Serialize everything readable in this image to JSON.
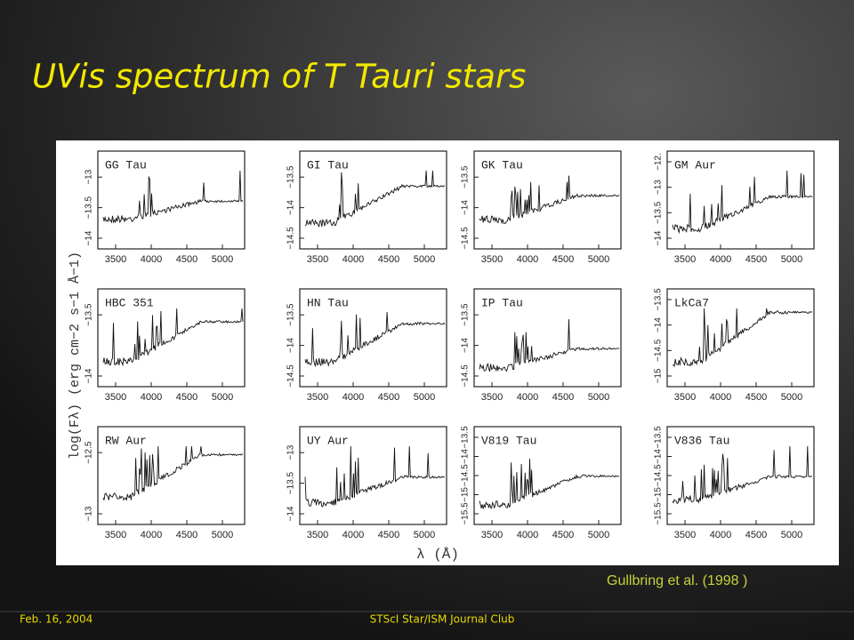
{
  "title": "UVis spectrum of T Tauri stars",
  "figure": {
    "y_label": "log(Fλ) (erg cm−2 s−1 Å−1)",
    "x_label": "λ (Å)",
    "xticks": [
      "3500",
      "4000",
      "4500",
      "5000"
    ],
    "panels": [
      {
        "name": "GG Tau",
        "yticks": [
          "−14",
          "−13.5",
          "−13"
        ]
      },
      {
        "name": "GI Tau",
        "yticks": [
          "−14.5",
          "−14",
          "−13.5"
        ]
      },
      {
        "name": "GK Tau",
        "yticks": [
          "−14.5",
          "−14",
          "−13.5"
        ]
      },
      {
        "name": "GM Aur",
        "yticks": [
          "−14",
          "−13.5",
          "−13",
          "−12."
        ]
      },
      {
        "name": "HBC 351",
        "yticks": [
          "−14",
          "−13.5"
        ]
      },
      {
        "name": "HN Tau",
        "yticks": [
          "−14.5",
          "−14",
          "−13.5"
        ]
      },
      {
        "name": "IP Tau",
        "yticks": [
          "−14.5",
          "−14",
          "−13.5"
        ]
      },
      {
        "name": "LkCa7",
        "yticks": [
          "−15",
          "−14.5",
          "−14",
          "−13.5"
        ]
      },
      {
        "name": "RW Aur",
        "yticks": [
          "−13",
          "−12.5"
        ]
      },
      {
        "name": "UY Aur",
        "yticks": [
          "−14",
          "−13.5",
          "−13"
        ]
      },
      {
        "name": "V819 Tau",
        "yticks": [
          "−15.5",
          "−15",
          "−14.5",
          "−14",
          "−13.5"
        ]
      },
      {
        "name": "V836 Tau",
        "yticks": [
          "−15.5",
          "−15",
          "−14.5",
          "−14",
          "−13.5"
        ]
      }
    ]
  },
  "citation": "Gullbring et al. (1998 )",
  "footer": {
    "date": "Feb. 16, 2004",
    "event": "STScI Star/ISM Journal Club"
  }
}
